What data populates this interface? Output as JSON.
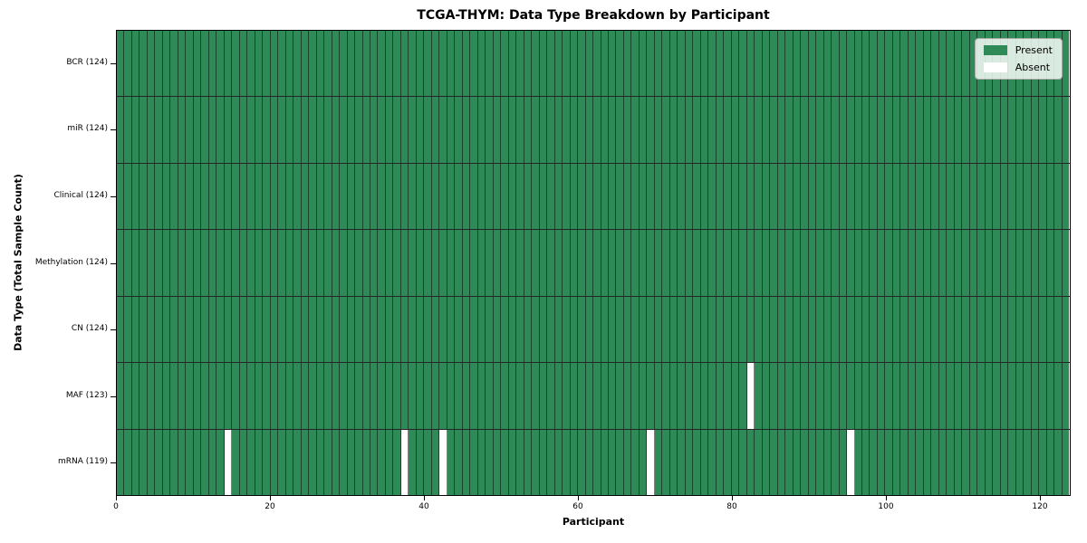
{
  "chart_data": {
    "type": "heatmap",
    "title": "TCGA-THYM: Data Type Breakdown by Participant",
    "xlabel": "Participant",
    "ylabel": "Data Type (Total Sample Count)",
    "n_participants": 124,
    "xlim": [
      0,
      124
    ],
    "x_ticks": [
      0,
      20,
      40,
      60,
      80,
      100,
      120
    ],
    "rows": [
      {
        "label": "BCR (124)",
        "present_count": 124,
        "absent_indices": []
      },
      {
        "label": "miR (124)",
        "present_count": 124,
        "absent_indices": []
      },
      {
        "label": "Clinical (124)",
        "present_count": 124,
        "absent_indices": []
      },
      {
        "label": "Methylation (124)",
        "present_count": 124,
        "absent_indices": []
      },
      {
        "label": "CN (124)",
        "present_count": 124,
        "absent_indices": []
      },
      {
        "label": "MAF (123)",
        "present_count": 123,
        "absent_indices": [
          82
        ]
      },
      {
        "label": "mRNA (119)",
        "present_count": 119,
        "absent_indices": [
          14,
          37,
          42,
          69,
          95
        ]
      }
    ],
    "legend": [
      {
        "label": "Present",
        "color": "#2e8b57"
      },
      {
        "label": "Absent",
        "color": "#ffffff"
      }
    ],
    "legend_position": "upper right",
    "grid": false,
    "colors": {
      "present": "#2e8b57",
      "absent": "#ffffff",
      "cell_edge": "rgba(0,0,0,0.5)",
      "row_edge": "rgba(0,0,0,0.85)",
      "spine": "#000000"
    }
  }
}
